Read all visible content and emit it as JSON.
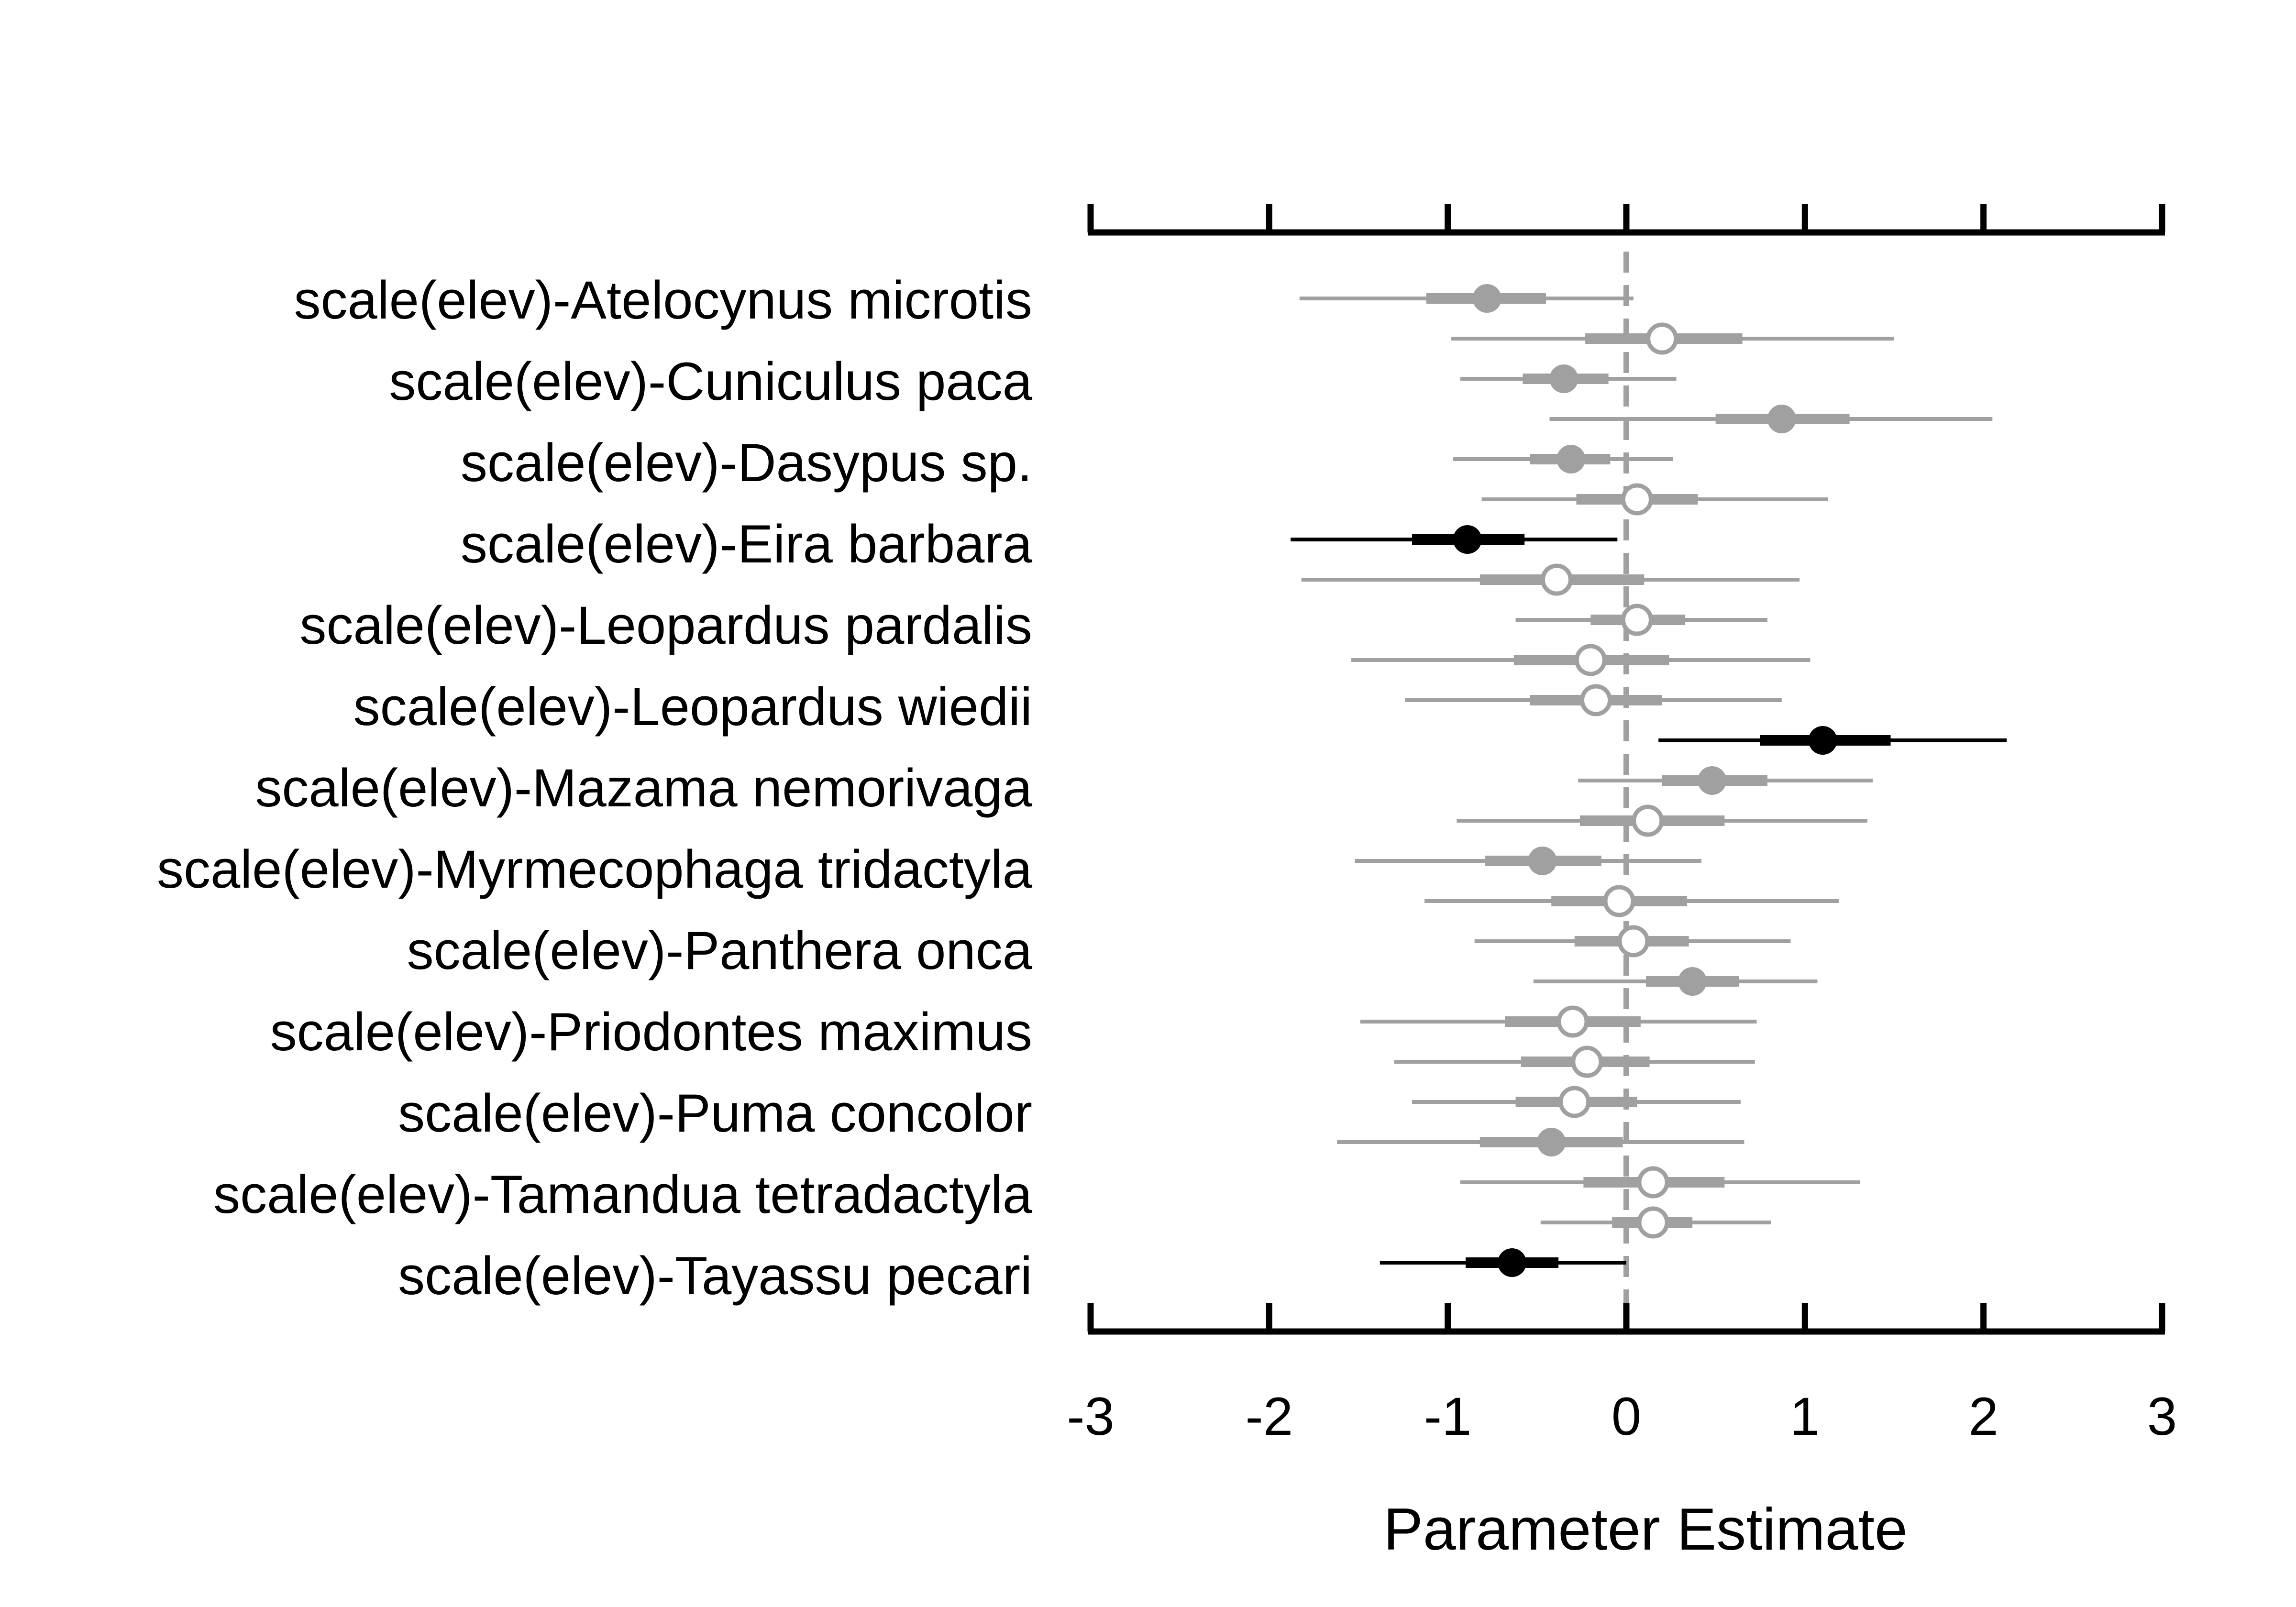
{
  "chart_data": {
    "type": "scatter",
    "subtype": "coefficient-interval-plot",
    "title": "",
    "xlabel": "Parameter Estimate",
    "ylabel": "",
    "xlim": [
      -3,
      3
    ],
    "xticks": [
      -3,
      -2,
      -1,
      0,
      1,
      2,
      3
    ],
    "xtick_labels": [
      "-3",
      "-2",
      "-1",
      "0",
      "1",
      "2",
      "3"
    ],
    "reference_line": 0,
    "labels": [
      "scale(elev)-Atelocynus microtis",
      "scale(elev)-Cuniculus paca",
      "scale(elev)-Dasypus sp.",
      "scale(elev)-Eira barbara",
      "scale(elev)-Leopardus pardalis",
      "scale(elev)-Leopardus wiedii",
      "scale(elev)-Mazama nemorivaga",
      "scale(elev)-Myrmecophaga tridactyla",
      "scale(elev)-Panthera onca",
      "scale(elev)-Priodontes maximus",
      "scale(elev)-Puma concolor",
      "scale(elev)-Tamandua tetradactyla",
      "scale(elev)-Tayassu pecari"
    ],
    "colors": {
      "significant": "#000000",
      "other": "#a0a0a0",
      "open_fill": "#ffffff",
      "zero_line": "#a0a0a0"
    },
    "rows": [
      {
        "est": -0.78,
        "lo50": -1.12,
        "hi50": -0.45,
        "lo95": -1.83,
        "hi95": 0.04,
        "style": "gray-filled"
      },
      {
        "est": 0.2,
        "lo50": -0.23,
        "hi50": 0.65,
        "lo95": -0.98,
        "hi95": 1.5,
        "style": "gray-open"
      },
      {
        "est": -0.35,
        "lo50": -0.58,
        "hi50": -0.1,
        "lo95": -0.93,
        "hi95": 0.28,
        "style": "gray-filled"
      },
      {
        "est": 0.87,
        "lo50": 0.5,
        "hi50": 1.25,
        "lo95": -0.43,
        "hi95": 2.05,
        "style": "gray-filled"
      },
      {
        "est": -0.31,
        "lo50": -0.54,
        "hi50": -0.09,
        "lo95": -0.97,
        "hi95": 0.26,
        "style": "gray-filled"
      },
      {
        "est": 0.06,
        "lo50": -0.28,
        "hi50": 0.4,
        "lo95": -0.81,
        "hi95": 1.13,
        "style": "gray-open"
      },
      {
        "est": -0.89,
        "lo50": -1.2,
        "hi50": -0.57,
        "lo95": -1.88,
        "hi95": -0.05,
        "style": "black-filled"
      },
      {
        "est": -0.39,
        "lo50": -0.82,
        "hi50": 0.1,
        "lo95": -1.82,
        "hi95": 0.97,
        "style": "gray-open"
      },
      {
        "est": 0.06,
        "lo50": -0.2,
        "hi50": 0.33,
        "lo95": -0.62,
        "hi95": 0.79,
        "style": "gray-open"
      },
      {
        "est": -0.2,
        "lo50": -0.63,
        "hi50": 0.24,
        "lo95": -1.54,
        "hi95": 1.03,
        "style": "gray-open"
      },
      {
        "est": -0.17,
        "lo50": -0.54,
        "hi50": 0.2,
        "lo95": -1.24,
        "hi95": 0.87,
        "style": "gray-open"
      },
      {
        "est": 1.1,
        "lo50": 0.75,
        "hi50": 1.48,
        "lo95": 0.18,
        "hi95": 2.13,
        "style": "black-filled"
      },
      {
        "est": 0.48,
        "lo50": 0.2,
        "hi50": 0.79,
        "lo95": -0.27,
        "hi95": 1.38,
        "style": "gray-filled"
      },
      {
        "est": 0.12,
        "lo50": -0.26,
        "hi50": 0.55,
        "lo95": -0.95,
        "hi95": 1.35,
        "style": "gray-open"
      },
      {
        "est": -0.47,
        "lo50": -0.79,
        "hi50": -0.14,
        "lo95": -1.52,
        "hi95": 0.42,
        "style": "gray-filled"
      },
      {
        "est": -0.04,
        "lo50": -0.42,
        "hi50": 0.34,
        "lo95": -1.13,
        "hi95": 1.19,
        "style": "gray-open"
      },
      {
        "est": 0.04,
        "lo50": -0.29,
        "hi50": 0.35,
        "lo95": -0.85,
        "hi95": 0.92,
        "style": "gray-open"
      },
      {
        "est": 0.37,
        "lo50": 0.11,
        "hi50": 0.63,
        "lo95": -0.52,
        "hi95": 1.07,
        "style": "gray-filled"
      },
      {
        "est": -0.3,
        "lo50": -0.68,
        "hi50": 0.08,
        "lo95": -1.49,
        "hi95": 0.73,
        "style": "gray-open"
      },
      {
        "est": -0.22,
        "lo50": -0.59,
        "hi50": 0.13,
        "lo95": -1.3,
        "hi95": 0.72,
        "style": "gray-open"
      },
      {
        "est": -0.29,
        "lo50": -0.62,
        "hi50": 0.06,
        "lo95": -1.2,
        "hi95": 0.64,
        "style": "gray-open"
      },
      {
        "est": -0.42,
        "lo50": -0.82,
        "hi50": -0.02,
        "lo95": -1.62,
        "hi95": 0.66,
        "style": "gray-filled"
      },
      {
        "est": 0.15,
        "lo50": -0.24,
        "hi50": 0.55,
        "lo95": -0.93,
        "hi95": 1.31,
        "style": "gray-open"
      },
      {
        "est": 0.15,
        "lo50": -0.08,
        "hi50": 0.37,
        "lo95": -0.48,
        "hi95": 0.81,
        "style": "gray-open"
      },
      {
        "est": -0.64,
        "lo50": -0.9,
        "hi50": -0.38,
        "lo95": -1.38,
        "hi95": 0.0,
        "style": "black-filled"
      }
    ]
  }
}
